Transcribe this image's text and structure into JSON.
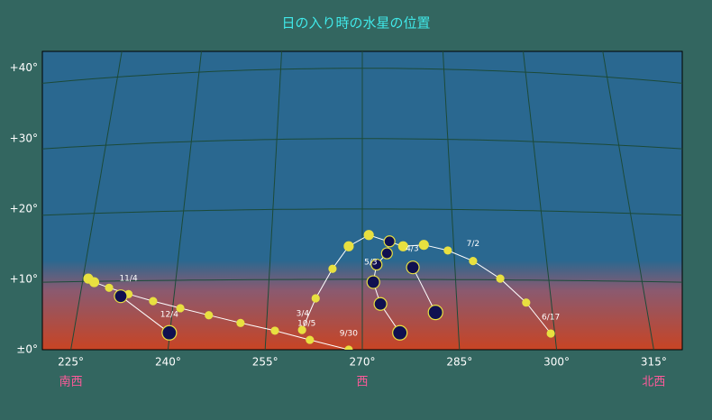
{
  "chart_data": {
    "type": "scatter",
    "title": "日の入り時の水星の位置",
    "xlim": [
      220.6,
      319.4
    ],
    "ylim": [
      0,
      42.4
    ],
    "xticks": [
      {
        "value": 225,
        "label": "225°"
      },
      {
        "value": 240,
        "label": "240°"
      },
      {
        "value": 255,
        "label": "255°"
      },
      {
        "value": 270,
        "label": "270°"
      },
      {
        "value": 285,
        "label": "285°"
      },
      {
        "value": 300,
        "label": "300°"
      },
      {
        "value": 315,
        "label": "315°"
      }
    ],
    "yticks": [
      {
        "value": 0,
        "label": "±0°"
      },
      {
        "value": 10,
        "label": "+10°"
      },
      {
        "value": 20,
        "label": "+20°"
      },
      {
        "value": 30,
        "label": "+30°"
      },
      {
        "value": 40,
        "label": "+40°"
      }
    ],
    "grid": true,
    "directions": [
      {
        "label": "南西",
        "value": 225
      },
      {
        "label": "西",
        "value": 270
      },
      {
        "label": "北西",
        "value": 315
      }
    ],
    "series": [
      {
        "color": "#e8e040",
        "x": [
          267.9,
          261.9,
          256.5,
          251.2,
          246.3,
          241.9,
          237.7,
          233.9,
          230.9,
          228.6,
          227.7
        ],
        "values": [
          0,
          1.4,
          2.7,
          3.8,
          4.9,
          5.9,
          6.9,
          7.9,
          8.8,
          9.6,
          10.1
        ],
        "sizes": [
          4,
          4,
          4,
          4,
          4,
          4,
          4,
          4,
          4,
          5,
          5
        ]
      },
      {
        "color": "#101050",
        "x": [
          232.7,
          240.2
        ],
        "values": [
          7.6,
          2.4
        ],
        "sizes": [
          7,
          8
        ]
      },
      {
        "color": "#e8e040",
        "x": [
          260.7,
          262.8,
          265.4,
          267.9,
          271.0,
          276.3,
          279.5,
          283.2,
          287.1,
          291.3,
          295.3,
          299.1
        ],
        "values": [
          2.8,
          7.3,
          11.5,
          14.7,
          16.3,
          14.7,
          14.9,
          14.1,
          12.6,
          10.1,
          6.7,
          2.3
        ],
        "sizes": [
          4,
          4,
          4,
          5,
          5,
          5,
          5,
          4,
          4,
          4,
          4,
          4
        ]
      },
      {
        "color": "#101050",
        "x": [
          274.2,
          273.8,
          272.2,
          271.7,
          272.8,
          275.8
        ],
        "values": [
          15.4,
          13.7,
          12.1,
          9.6,
          6.5,
          2.4
        ],
        "sizes": [
          6,
          6,
          6,
          7,
          7,
          8
        ]
      },
      {
        "color": "#101050",
        "x": [
          277.8,
          281.3
        ],
        "values": [
          11.7,
          5.3
        ],
        "sizes": [
          7,
          8
        ]
      }
    ],
    "annotations": [
      {
        "text": "9/30",
        "x": 267.9,
        "y": 1.3
      },
      {
        "text": "10/5",
        "x": 261.4,
        "y": 2.7
      },
      {
        "text": "11/4",
        "x": 233.9,
        "y": 9.1
      },
      {
        "text": "12/4",
        "x": 240.2,
        "y": 4.0
      },
      {
        "text": "3/4",
        "x": 260.8,
        "y": 4.1
      },
      {
        "text": "4/3",
        "x": 277.7,
        "y": 13.3
      },
      {
        "text": "5/3",
        "x": 271.3,
        "y": 11.4
      },
      {
        "text": "7/2",
        "x": 287.1,
        "y": 14.0
      },
      {
        "text": "6/17",
        "x": 299.1,
        "y": 3.6
      }
    ]
  }
}
